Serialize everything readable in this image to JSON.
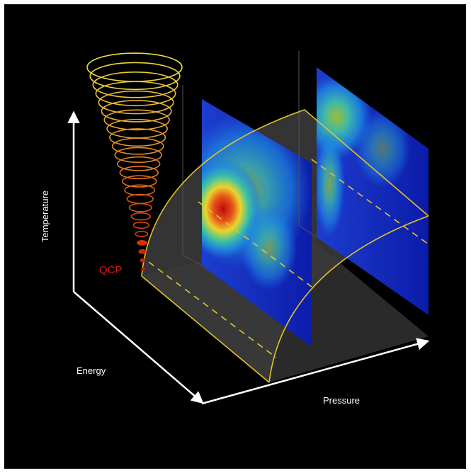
{
  "labels": {
    "temperature": "Temperature",
    "energy": "Energy",
    "pressure": "Pressure",
    "qcp": "QCP"
  }
}
